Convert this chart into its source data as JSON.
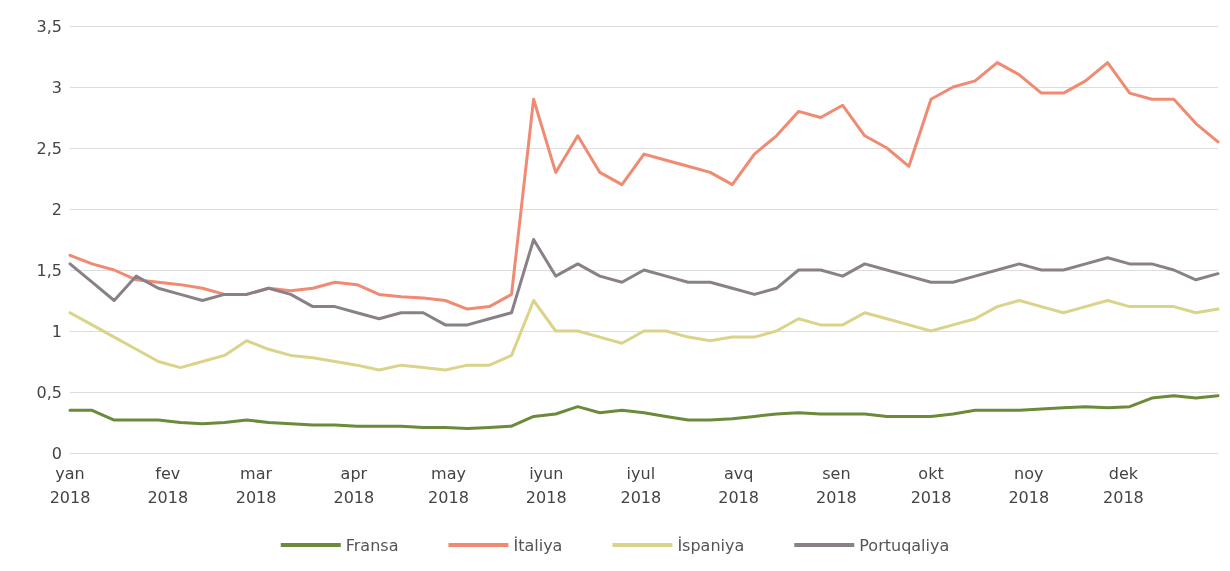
{
  "chart_data": {
    "type": "line",
    "x": [
      "2018-01-01",
      "2018-01-08",
      "2018-01-15",
      "2018-01-22",
      "2018-01-29",
      "2018-02-05",
      "2018-02-12",
      "2018-02-19",
      "2018-02-26",
      "2018-03-05",
      "2018-03-12",
      "2018-03-19",
      "2018-03-26",
      "2018-04-02",
      "2018-04-09",
      "2018-04-16",
      "2018-04-23",
      "2018-04-30",
      "2018-05-07",
      "2018-05-14",
      "2018-05-21",
      "2018-05-28",
      "2018-06-04",
      "2018-06-11",
      "2018-06-18",
      "2018-06-25",
      "2018-07-02",
      "2018-07-09",
      "2018-07-16",
      "2018-07-23",
      "2018-07-30",
      "2018-08-06",
      "2018-08-13",
      "2018-08-20",
      "2018-08-27",
      "2018-09-03",
      "2018-09-10",
      "2018-09-17",
      "2018-09-24",
      "2018-10-01",
      "2018-10-08",
      "2018-10-15",
      "2018-10-22",
      "2018-10-29",
      "2018-11-05",
      "2018-11-12",
      "2018-11-19",
      "2018-11-26",
      "2018-12-03",
      "2018-12-10",
      "2018-12-17",
      "2018-12-24",
      "2018-12-31"
    ],
    "series": [
      {
        "name": "Fransa",
        "color": "#6b8a3a",
        "values": [
          0.35,
          0.35,
          0.27,
          0.27,
          0.27,
          0.25,
          0.24,
          0.25,
          0.27,
          0.25,
          0.24,
          0.23,
          0.23,
          0.22,
          0.22,
          0.22,
          0.21,
          0.21,
          0.2,
          0.21,
          0.22,
          0.3,
          0.32,
          0.38,
          0.33,
          0.35,
          0.33,
          0.3,
          0.27,
          0.27,
          0.28,
          0.3,
          0.32,
          0.33,
          0.32,
          0.32,
          0.32,
          0.3,
          0.3,
          0.3,
          0.32,
          0.35,
          0.35,
          0.35,
          0.36,
          0.37,
          0.38,
          0.37,
          0.38,
          0.45,
          0.47,
          0.45,
          0.47
        ]
      },
      {
        "name": "İtaliya",
        "color": "#f08a72",
        "values": [
          1.62,
          1.55,
          1.5,
          1.42,
          1.4,
          1.38,
          1.35,
          1.3,
          1.3,
          1.35,
          1.33,
          1.35,
          1.4,
          1.38,
          1.3,
          1.28,
          1.27,
          1.25,
          1.18,
          1.2,
          1.3,
          2.9,
          2.3,
          2.6,
          2.3,
          2.2,
          2.45,
          2.4,
          2.35,
          2.3,
          2.2,
          2.45,
          2.6,
          2.8,
          2.75,
          2.85,
          2.6,
          2.5,
          2.35,
          2.9,
          3.0,
          3.05,
          3.2,
          3.1,
          2.95,
          2.95,
          3.05,
          3.2,
          2.95,
          2.9,
          2.9,
          2.7,
          2.55
        ]
      },
      {
        "name": "İspaniya",
        "color": "#d9d48a",
        "values": [
          1.15,
          1.05,
          0.95,
          0.85,
          0.75,
          0.7,
          0.75,
          0.8,
          0.92,
          0.85,
          0.8,
          0.78,
          0.75,
          0.72,
          0.68,
          0.72,
          0.7,
          0.68,
          0.72,
          0.72,
          0.8,
          1.25,
          1.0,
          1.0,
          0.95,
          0.9,
          1.0,
          1.0,
          0.95,
          0.92,
          0.95,
          0.95,
          1.0,
          1.1,
          1.05,
          1.05,
          1.15,
          1.1,
          1.05,
          1.0,
          1.05,
          1.1,
          1.2,
          1.25,
          1.2,
          1.15,
          1.2,
          1.25,
          1.2,
          1.2,
          1.2,
          1.15,
          1.18
        ]
      },
      {
        "name": "Portuqaliya",
        "color": "#8a8088",
        "values": [
          1.55,
          1.4,
          1.25,
          1.45,
          1.35,
          1.3,
          1.25,
          1.3,
          1.3,
          1.35,
          1.3,
          1.2,
          1.2,
          1.15,
          1.1,
          1.15,
          1.15,
          1.05,
          1.05,
          1.1,
          1.15,
          1.75,
          1.45,
          1.55,
          1.45,
          1.4,
          1.5,
          1.45,
          1.4,
          1.4,
          1.35,
          1.3,
          1.35,
          1.5,
          1.5,
          1.45,
          1.55,
          1.5,
          1.45,
          1.4,
          1.4,
          1.45,
          1.5,
          1.55,
          1.5,
          1.5,
          1.55,
          1.6,
          1.55,
          1.55,
          1.5,
          1.42,
          1.47
        ]
      }
    ],
    "xlim": [
      "2018-01-01",
      "2018-12-31"
    ],
    "xticks": [
      {
        "value": "2018-01-01",
        "label": "yan 2018"
      },
      {
        "value": "2018-02-01",
        "label": "fev 2018"
      },
      {
        "value": "2018-03-01",
        "label": "mar 2018"
      },
      {
        "value": "2018-04-01",
        "label": "apr 2018"
      },
      {
        "value": "2018-05-01",
        "label": "may 2018"
      },
      {
        "value": "2018-06-01",
        "label": "iyun 2018"
      },
      {
        "value": "2018-07-01",
        "label": "iyul 2018"
      },
      {
        "value": "2018-08-01",
        "label": "avq 2018"
      },
      {
        "value": "2018-09-01",
        "label": "sen 2018"
      },
      {
        "value": "2018-10-01",
        "label": "okt 2018"
      },
      {
        "value": "2018-11-01",
        "label": "noy 2018"
      },
      {
        "value": "2018-12-01",
        "label": "dek 2018"
      }
    ],
    "ylim": [
      0,
      3.5
    ],
    "yticks": [
      0,
      {
        "value": 0.5,
        "label": "0,5"
      },
      1,
      {
        "value": 1.5,
        "label": "1,5"
      },
      2,
      {
        "value": 2.5,
        "label": "2,5"
      },
      3,
      {
        "value": 3.5,
        "label": "3,5"
      }
    ],
    "grid": "y",
    "legend": "bottom",
    "marker": "none",
    "line_style": "solid"
  }
}
